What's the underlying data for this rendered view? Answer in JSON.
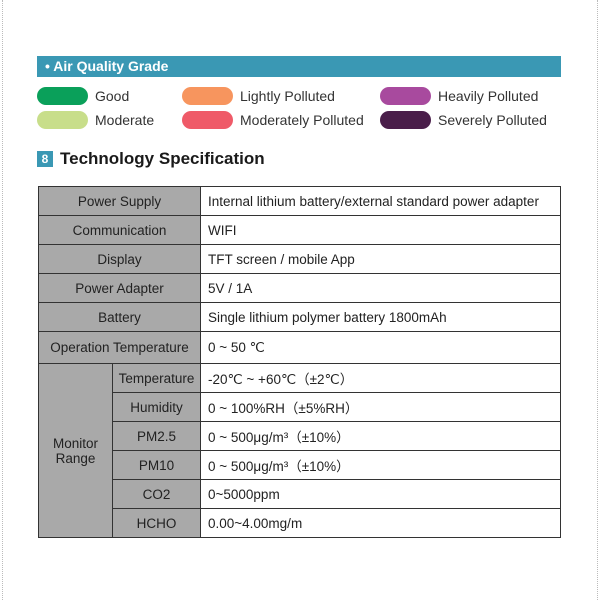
{
  "section_bar": "• Air Quality Grade",
  "legend": [
    {
      "label": "Good",
      "color": "#0aa05a"
    },
    {
      "label": "Lightly Polluted",
      "color": "#f7955e"
    },
    {
      "label": "Heavily Polluted",
      "color": "#a84a9e"
    },
    {
      "label": "Moderate",
      "color": "#c8de8a"
    },
    {
      "label": "Moderately Polluted",
      "color": "#ef5a68"
    },
    {
      "label": "Severely Polluted",
      "color": "#4a1e4a"
    }
  ],
  "heading": {
    "number": "8",
    "title": "Technology Specification"
  },
  "spec": [
    {
      "k": "Power Supply",
      "v": "Internal lithium battery/external standard power adapter"
    },
    {
      "k": "Communication",
      "v": "WIFI"
    },
    {
      "k": "Display",
      "v": "TFT screen / mobile App"
    },
    {
      "k": "Power Adapter",
      "v": "5V / 1A"
    },
    {
      "k": "Battery",
      "v": "Single lithium polymer battery 1800mAh"
    },
    {
      "k": "Operation Temperature",
      "v": "0 ~ 50 ℃"
    }
  ],
  "monitor": {
    "label": "Monitor Range",
    "rows": [
      {
        "k": "Temperature",
        "v": "-20℃ ~ +60℃（±2℃）"
      },
      {
        "k": "Humidity",
        "v": "0 ~ 100%RH（±5%RH）"
      },
      {
        "k": "PM2.5",
        "v": "0 ~ 500μg/m³（±10%）"
      },
      {
        "k": "PM10",
        "v": "0 ~ 500μg/m³（±10%）"
      },
      {
        "k": "CO2",
        "v": "0~5000ppm"
      },
      {
        "k": "HCHO",
        "v": "0.00~4.00mg/m"
      }
    ]
  }
}
